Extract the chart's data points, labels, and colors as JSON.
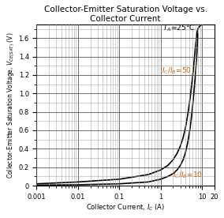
{
  "title_line1": "Collector-Emitter Saturation Voltage vs.",
  "title_line2": "Collector Current",
  "annotation_ta": "T_A=25C",
  "annotation_ic50": "I_C/I_B=50",
  "annotation_ic10": "I_C/I_B=10",
  "xlim": [
    0.001,
    20
  ],
  "ylim": [
    0,
    1.75
  ],
  "curve_color": "#000000",
  "grid_color_major": "#555555",
  "grid_color_minor": "#aaaaaa",
  "bg_color": "#ffffff",
  "title_fontsize": 7.5,
  "label_fontsize": 6.0,
  "tick_fontsize": 6,
  "annot_fontsize": 6.5,
  "curves": {
    "ic_ib_10": {
      "ic": [
        0.001,
        0.01,
        0.1,
        0.5,
        1.0,
        1.5,
        2.0,
        2.5,
        3.0,
        3.5,
        4.0,
        4.5,
        5.0,
        5.5,
        6.0,
        6.5,
        7.0,
        7.5,
        8.0
      ],
      "vce": [
        0.005,
        0.01,
        0.02,
        0.04,
        0.07,
        0.1,
        0.13,
        0.17,
        0.22,
        0.28,
        0.36,
        0.46,
        0.58,
        0.72,
        0.88,
        1.05,
        1.22,
        1.42,
        1.65
      ]
    },
    "ic_ib_50": {
      "ic": [
        0.001,
        0.01,
        0.1,
        0.5,
        1.0,
        1.5,
        2.0,
        2.5,
        3.0,
        3.5,
        4.0,
        4.5,
        5.0,
        5.5,
        6.0,
        6.5,
        7.0,
        7.5,
        8.0,
        8.5,
        9.0,
        9.5,
        10.0,
        11.0,
        12.0,
        13.0,
        14.0,
        15.0
      ],
      "vce": [
        0.02,
        0.04,
        0.07,
        0.12,
        0.17,
        0.22,
        0.28,
        0.35,
        0.43,
        0.52,
        0.63,
        0.76,
        0.9,
        1.05,
        1.2,
        1.36,
        1.52,
        1.65,
        1.7,
        1.72,
        1.73,
        1.74,
        1.75,
        1.75,
        1.75,
        1.75,
        1.75,
        1.75
      ]
    }
  }
}
